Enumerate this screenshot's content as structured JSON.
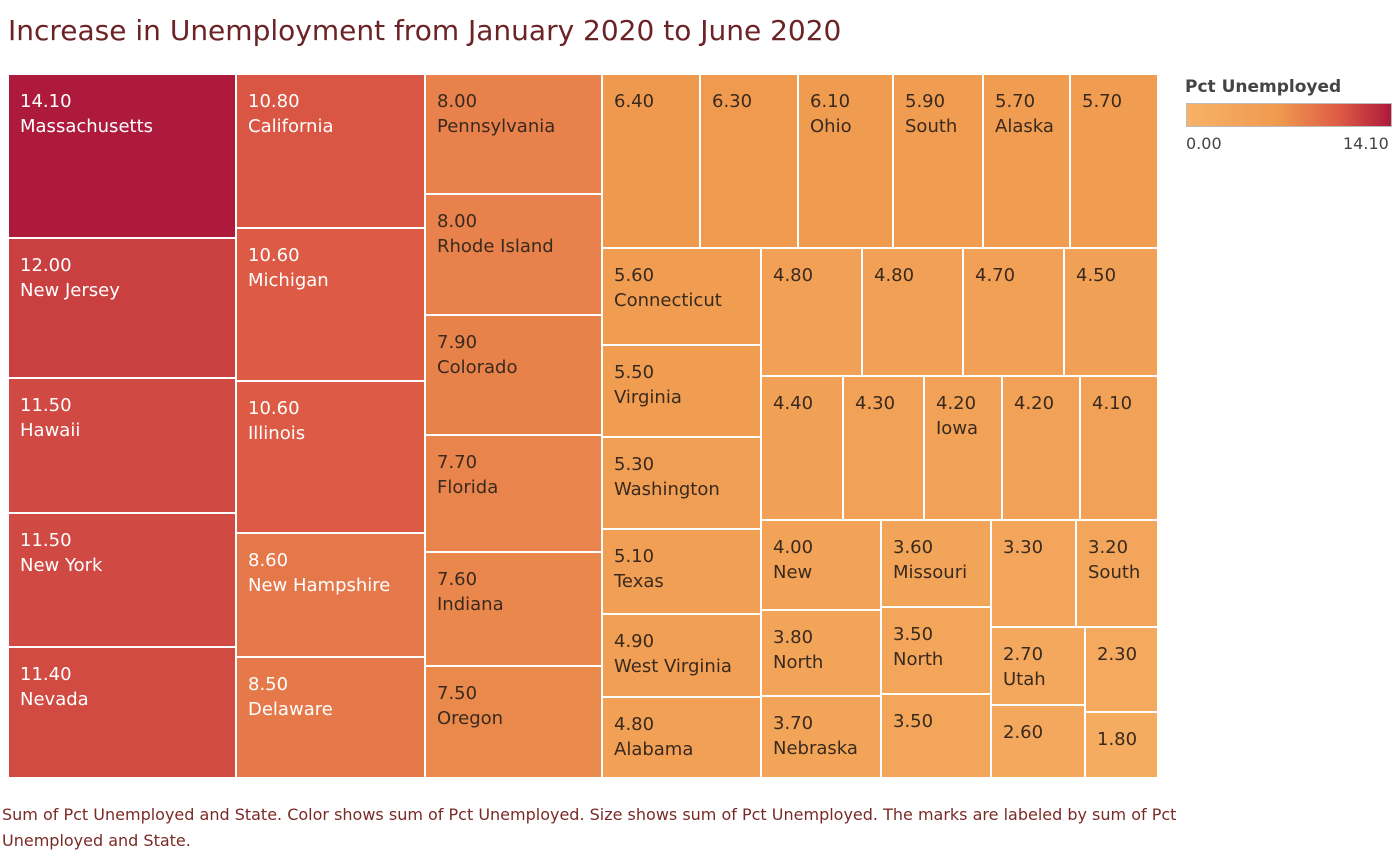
{
  "title": "Increase in Unemployment from January 2020 to June 2020",
  "legend": {
    "title": "Pct Unemployed",
    "min_label": "0.00",
    "max_label": "14.10",
    "color_low": "#f7b267",
    "color_high": "#ad1a3b"
  },
  "caption": "Sum of Pct Unemployed and State.  Color shows sum of Pct Unemployed.  Size shows sum of Pct Unemployed.  The marks are labeled by sum of Pct Unemployed and State.",
  "chart_data": {
    "type": "treemap",
    "measure": "Pct Unemployed",
    "color_range": [
      0,
      14.1
    ],
    "items": [
      {
        "value": 14.1,
        "value_label": "14.10",
        "state": "Massachusetts"
      },
      {
        "value": 12.0,
        "value_label": "12.00",
        "state": "New Jersey"
      },
      {
        "value": 11.5,
        "value_label": "11.50",
        "state": "Hawaii"
      },
      {
        "value": 11.5,
        "value_label": "11.50",
        "state": "New York"
      },
      {
        "value": 11.4,
        "value_label": "11.40",
        "state": "Nevada"
      },
      {
        "value": 10.8,
        "value_label": "10.80",
        "state": "California"
      },
      {
        "value": 10.6,
        "value_label": "10.60",
        "state": "Michigan"
      },
      {
        "value": 10.6,
        "value_label": "10.60",
        "state": "Illinois"
      },
      {
        "value": 8.6,
        "value_label": "8.60",
        "state": "New Hampshire"
      },
      {
        "value": 8.5,
        "value_label": "8.50",
        "state": "Delaware"
      },
      {
        "value": 8.0,
        "value_label": "8.00",
        "state": "Pennsylvania"
      },
      {
        "value": 8.0,
        "value_label": "8.00",
        "state": "Rhode Island"
      },
      {
        "value": 7.9,
        "value_label": "7.90",
        "state": "Colorado"
      },
      {
        "value": 7.7,
        "value_label": "7.70",
        "state": "Florida"
      },
      {
        "value": 7.6,
        "value_label": "7.60",
        "state": "Indiana"
      },
      {
        "value": 7.5,
        "value_label": "7.50",
        "state": "Oregon"
      },
      {
        "value": 6.4,
        "value_label": "6.40",
        "state": ""
      },
      {
        "value": 6.3,
        "value_label": "6.30",
        "state": ""
      },
      {
        "value": 6.1,
        "value_label": "6.10",
        "state": "Ohio"
      },
      {
        "value": 5.9,
        "value_label": "5.90",
        "state": "South"
      },
      {
        "value": 5.7,
        "value_label": "5.70",
        "state": "Alaska"
      },
      {
        "value": 5.7,
        "value_label": "5.70",
        "state": ""
      },
      {
        "value": 5.6,
        "value_label": "5.60",
        "state": "Connecticut"
      },
      {
        "value": 5.5,
        "value_label": "5.50",
        "state": "Virginia"
      },
      {
        "value": 5.3,
        "value_label": "5.30",
        "state": "Washington"
      },
      {
        "value": 5.1,
        "value_label": "5.10",
        "state": "Texas"
      },
      {
        "value": 4.9,
        "value_label": "4.90",
        "state": "West Virginia"
      },
      {
        "value": 4.8,
        "value_label": "4.80",
        "state": "Alabama"
      },
      {
        "value": 4.8,
        "value_label": "4.80",
        "state": ""
      },
      {
        "value": 4.8,
        "value_label": "4.80",
        "state": ""
      },
      {
        "value": 4.7,
        "value_label": "4.70",
        "state": ""
      },
      {
        "value": 4.5,
        "value_label": "4.50",
        "state": ""
      },
      {
        "value": 4.4,
        "value_label": "4.40",
        "state": ""
      },
      {
        "value": 4.3,
        "value_label": "4.30",
        "state": ""
      },
      {
        "value": 4.2,
        "value_label": "4.20",
        "state": "Iowa"
      },
      {
        "value": 4.2,
        "value_label": "4.20",
        "state": ""
      },
      {
        "value": 4.1,
        "value_label": "4.10",
        "state": ""
      },
      {
        "value": 4.0,
        "value_label": "4.00",
        "state": "New"
      },
      {
        "value": 3.6,
        "value_label": "3.60",
        "state": "Missouri"
      },
      {
        "value": 3.3,
        "value_label": "3.30",
        "state": ""
      },
      {
        "value": 3.2,
        "value_label": "3.20",
        "state": "South"
      },
      {
        "value": 3.8,
        "value_label": "3.80",
        "state": "North"
      },
      {
        "value": 3.5,
        "value_label": "3.50",
        "state": "North"
      },
      {
        "value": 2.7,
        "value_label": "2.70",
        "state": "Utah"
      },
      {
        "value": 2.3,
        "value_label": "2.30",
        "state": ""
      },
      {
        "value": 3.7,
        "value_label": "3.70",
        "state": "Nebraska"
      },
      {
        "value": 3.5,
        "value_label": "3.50",
        "state": ""
      },
      {
        "value": 2.6,
        "value_label": "2.60",
        "state": ""
      },
      {
        "value": 1.8,
        "value_label": "1.80",
        "state": ""
      }
    ]
  }
}
